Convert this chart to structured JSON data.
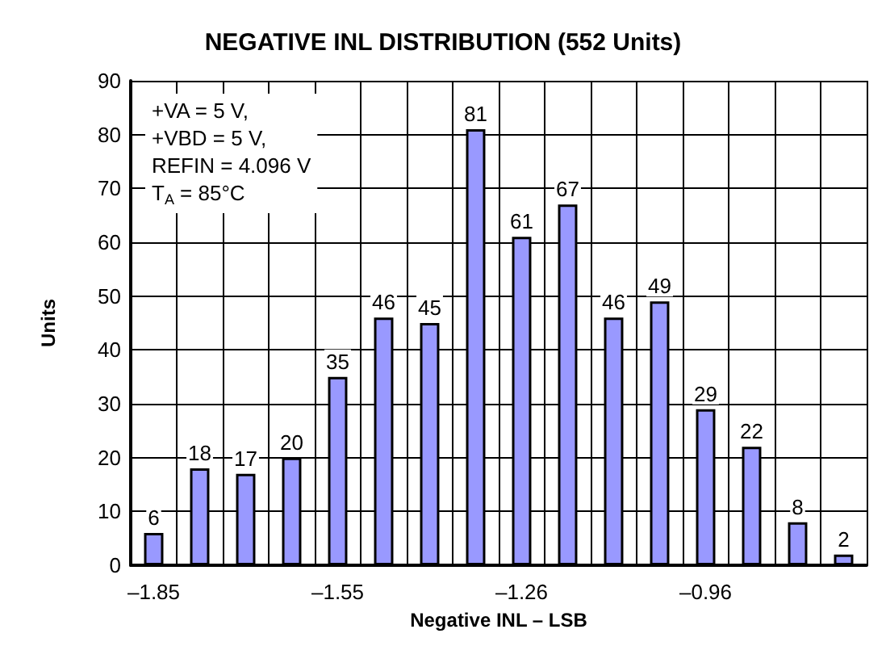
{
  "chart_data": {
    "type": "bar",
    "title": "NEGATIVE INL DISTRIBUTION (552 Units)",
    "xlabel": "Negative INL – LSB",
    "ylabel": "Units",
    "categories": [
      "–1.85",
      null,
      null,
      null,
      "–1.55",
      null,
      null,
      null,
      "–1.26",
      null,
      null,
      null,
      "–0.96",
      null,
      null,
      null
    ],
    "values": [
      6,
      18,
      17,
      20,
      35,
      46,
      45,
      81,
      61,
      67,
      46,
      49,
      29,
      22,
      8,
      2
    ],
    "color": "#9999ff",
    "ylim": [
      0,
      90
    ],
    "yticks": [
      0,
      10,
      20,
      30,
      40,
      50,
      60,
      70,
      80,
      90
    ],
    "grid": true,
    "data_labels": true,
    "annotations": [
      "+VA = 5 V,\n+VBD = 5 V,\nREFIN = 4.096 V\nT$_{A}$ = 85°C"
    ]
  }
}
